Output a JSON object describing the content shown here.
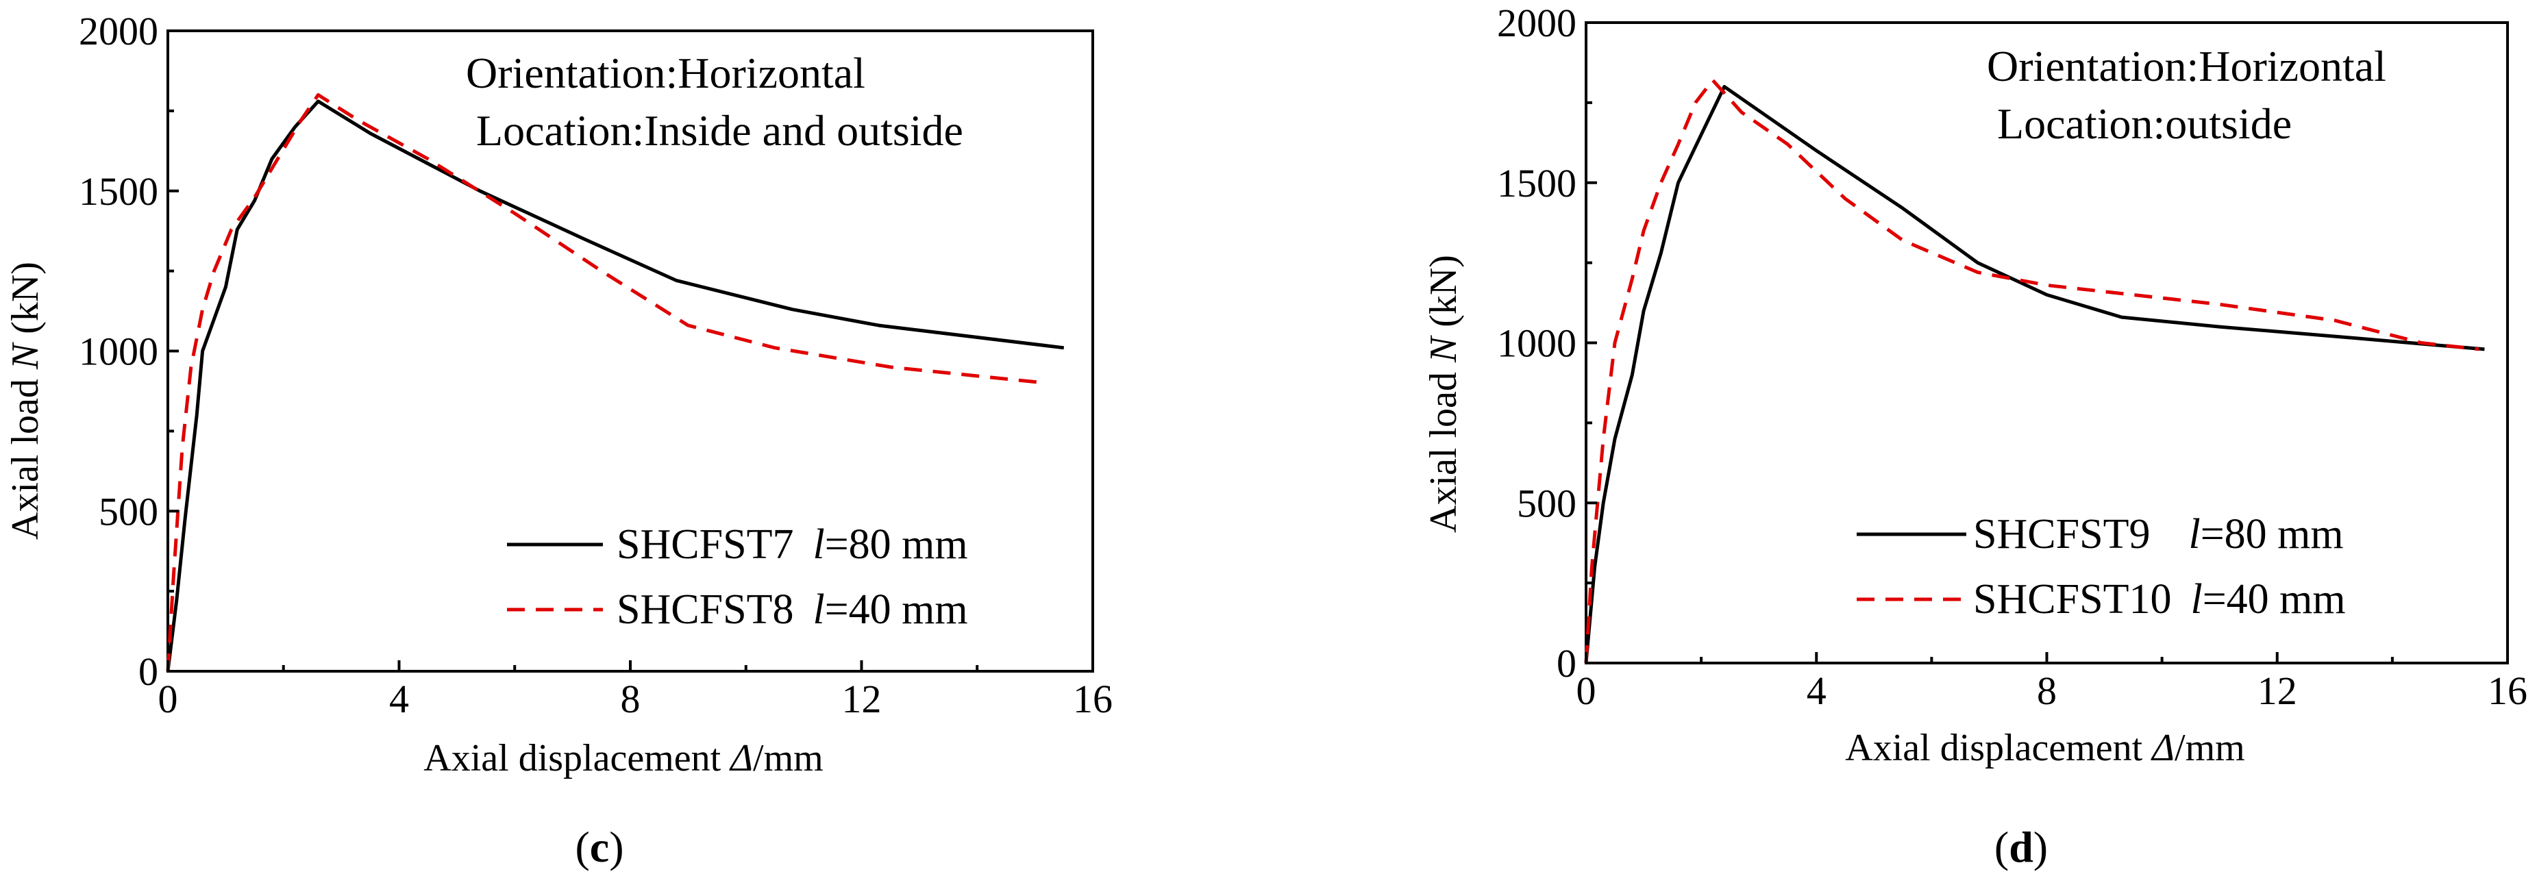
{
  "chart_data": [
    {
      "type": "line",
      "panel_label": "c",
      "xlabel": "Axial displacement ",
      "xlabel_symbol": "Δ",
      "xlabel_unit": "/mm",
      "ylabel": "Axial load ",
      "ylabel_symbol": "N",
      "ylabel_unit": " (kN)",
      "xlim": [
        0,
        16
      ],
      "ylim": [
        0,
        2000
      ],
      "xticks": [
        0,
        4,
        8,
        12,
        16
      ],
      "yticks": [
        0,
        500,
        1000,
        1500,
        2000
      ],
      "annotations": [
        "Orientation:Horizontal",
        "Location:Inside and outside"
      ],
      "legend_position": "bottom-right",
      "series": [
        {
          "name": "SHCFST7",
          "param_symbol": "l",
          "param_value": "=80 mm",
          "style": "solid",
          "color": "#000000",
          "x": [
            0,
            0.15,
            0.3,
            0.5,
            0.6,
            0.8,
            1.0,
            1.2,
            1.5,
            1.8,
            2.2,
            2.6,
            3.5,
            5.4,
            7.2,
            8.8,
            10.8,
            12.3,
            15.5
          ],
          "y": [
            0,
            220,
            480,
            800,
            1000,
            1100,
            1200,
            1380,
            1470,
            1600,
            1700,
            1780,
            1680,
            1500,
            1350,
            1220,
            1130,
            1080,
            1010
          ]
        },
        {
          "name": "SHCFST8",
          "param_symbol": "l",
          "param_value": "=40 mm",
          "style": "dashed",
          "color": "#e00000",
          "x": [
            0,
            0.1,
            0.25,
            0.4,
            0.6,
            0.8,
            1.1,
            1.5,
            1.9,
            2.3,
            2.6,
            3.3,
            4.5,
            6.0,
            7.5,
            9.0,
            10.5,
            12.5,
            15.2
          ],
          "y": [
            0,
            300,
            700,
            950,
            1130,
            1250,
            1380,
            1480,
            1600,
            1720,
            1800,
            1720,
            1600,
            1430,
            1250,
            1080,
            1010,
            950,
            900
          ]
        }
      ]
    },
    {
      "type": "line",
      "panel_label": "d",
      "xlabel": "Axial displacement ",
      "xlabel_symbol": "Δ",
      "xlabel_unit": "/mm",
      "ylabel": "Axial load ",
      "ylabel_symbol": "N",
      "ylabel_unit": " (kN)",
      "xlim": [
        0,
        16
      ],
      "ylim": [
        0,
        2000
      ],
      "xticks": [
        0,
        4,
        8,
        12,
        16
      ],
      "yticks": [
        0,
        500,
        1000,
        1500,
        2000
      ],
      "annotations": [
        "Orientation:Horizontal",
        "Location:outside"
      ],
      "legend_position": "bottom-right",
      "series": [
        {
          "name": "SHCFST9",
          "param_symbol": "l",
          "param_value": "=80 mm",
          "style": "solid",
          "color": "#000000",
          "x": [
            0,
            0.15,
            0.3,
            0.5,
            0.8,
            1.0,
            1.3,
            1.6,
            2.0,
            2.4,
            4.0,
            5.5,
            6.8,
            8.0,
            9.3,
            11.0,
            13.0,
            15.6
          ],
          "y": [
            0,
            300,
            500,
            700,
            900,
            1100,
            1280,
            1500,
            1650,
            1800,
            1600,
            1420,
            1250,
            1150,
            1080,
            1050,
            1020,
            980
          ]
        },
        {
          "name": "SHCFST10",
          "param_symbol": "l",
          "param_value": "=40 mm",
          "style": "dashed",
          "color": "#e00000",
          "x": [
            0,
            0.1,
            0.3,
            0.5,
            0.8,
            1.0,
            1.3,
            1.6,
            1.9,
            2.2,
            2.7,
            3.5,
            4.5,
            5.5,
            6.8,
            8.0,
            9.5,
            11.0,
            13.0,
            14.5,
            15.5
          ],
          "y": [
            0,
            300,
            700,
            1000,
            1200,
            1350,
            1500,
            1620,
            1750,
            1820,
            1720,
            1620,
            1450,
            1320,
            1220,
            1180,
            1150,
            1120,
            1070,
            1000,
            980
          ]
        }
      ]
    }
  ]
}
